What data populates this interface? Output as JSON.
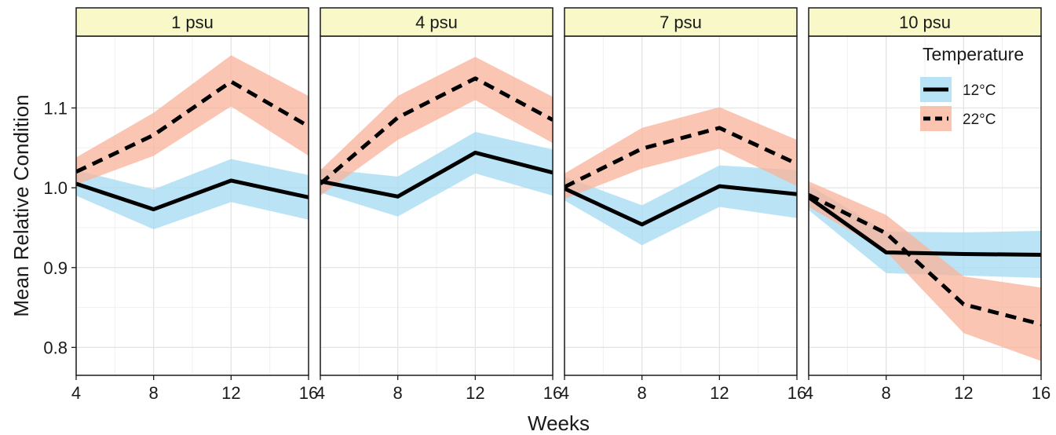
{
  "chart_data": {
    "type": "line",
    "facet_variable": "salinity",
    "panels": [
      {
        "label": "1 psu",
        "series": [
          {
            "name": "12°C",
            "x": [
              4,
              8,
              12,
              16
            ],
            "y": [
              1.005,
              0.973,
              1.009,
              0.988
            ],
            "lower": [
              0.99,
              0.948,
              0.982,
              0.96
            ],
            "upper": [
              1.022,
              0.998,
              1.036,
              1.016
            ]
          },
          {
            "name": "22°C",
            "x": [
              4,
              8,
              12,
              16
            ],
            "y": [
              1.02,
              1.066,
              1.133,
              1.077
            ],
            "lower": [
              1.004,
              1.04,
              1.102,
              1.04
            ],
            "upper": [
              1.038,
              1.094,
              1.166,
              1.115
            ]
          }
        ]
      },
      {
        "label": "4 psu",
        "series": [
          {
            "name": "12°C",
            "x": [
              4,
              8,
              12,
              16
            ],
            "y": [
              1.008,
              0.989,
              1.044,
              1.019
            ],
            "lower": [
              0.994,
              0.964,
              1.018,
              0.99
            ],
            "upper": [
              1.024,
              1.014,
              1.07,
              1.048
            ]
          },
          {
            "name": "22°C",
            "x": [
              4,
              8,
              12,
              16
            ],
            "y": [
              1.005,
              1.088,
              1.137,
              1.085
            ],
            "lower": [
              0.99,
              1.06,
              1.11,
              1.056
            ],
            "upper": [
              1.022,
              1.115,
              1.164,
              1.114
            ]
          }
        ]
      },
      {
        "label": "7 psu",
        "series": [
          {
            "name": "12°C",
            "x": [
              4,
              8,
              12,
              16
            ],
            "y": [
              0.999,
              0.954,
              1.002,
              0.992
            ],
            "lower": [
              0.984,
              0.928,
              0.976,
              0.962
            ],
            "upper": [
              1.014,
              0.978,
              1.028,
              1.022
            ]
          },
          {
            "name": "22°C",
            "x": [
              4,
              8,
              12,
              16
            ],
            "y": [
              1.001,
              1.049,
              1.075,
              1.03
            ],
            "lower": [
              0.986,
              1.024,
              1.049,
              1.002
            ],
            "upper": [
              1.018,
              1.075,
              1.101,
              1.06
            ]
          }
        ]
      },
      {
        "label": "10 psu",
        "series": [
          {
            "name": "12°C",
            "x": [
              4,
              8,
              12,
              16
            ],
            "y": [
              0.988,
              0.919,
              0.917,
              0.916
            ],
            "lower": [
              0.972,
              0.893,
              0.89,
              0.887
            ],
            "upper": [
              1.004,
              0.945,
              0.944,
              0.946
            ]
          },
          {
            "name": "22°C",
            "x": [
              4,
              8,
              12,
              16
            ],
            "y": [
              0.991,
              0.943,
              0.854,
              0.829
            ],
            "lower": [
              0.976,
              0.92,
              0.818,
              0.783
            ],
            "upper": [
              1.008,
              0.966,
              0.889,
              0.875
            ]
          }
        ]
      }
    ],
    "xlabel": "Weeks",
    "ylabel": "Mean Relative Condition",
    "x_ticks": [
      4,
      8,
      12,
      16
    ],
    "y_ticks": [
      0.8,
      0.9,
      1.0,
      1.1
    ],
    "y_tick_labels": [
      "0.8",
      "0.9",
      "1.0",
      "1.1"
    ],
    "xlim": [
      4,
      16
    ],
    "ylim": [
      0.765,
      1.19
    ],
    "grid": true,
    "legend": {
      "title": "Temperature",
      "placement": "top-right",
      "entries": [
        {
          "label": "12°C",
          "line": "solid",
          "fill": "#a6dcf4"
        },
        {
          "label": "22°C",
          "line": "dashed",
          "fill": "#f8b59c"
        }
      ]
    },
    "colors": {
      "band_12C": "#a6dcf4",
      "band_22C": "#f8b59c",
      "line": "#000000",
      "strip_fill": "#f8f8c8",
      "grid": "#e4e4e4"
    }
  }
}
